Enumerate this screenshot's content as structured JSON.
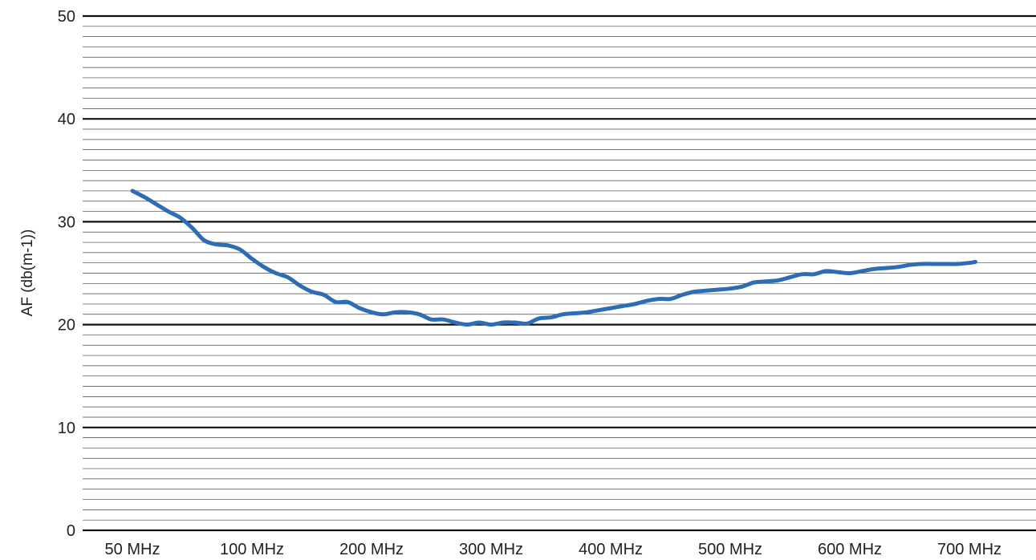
{
  "chart_data": {
    "type": "line",
    "title": "",
    "xlabel": "",
    "ylabel": "AF (db(m-1))",
    "categories": [
      "50 MHz",
      "100 MHz",
      "200 MHz",
      "300 MHz",
      "400 MHz",
      "500 MHz",
      "600 MHz",
      "700 MHz"
    ],
    "ylim": [
      0,
      50
    ],
    "yticks": [
      0,
      10,
      20,
      30,
      40,
      50
    ],
    "minor_grid_step": 1,
    "grid": true,
    "series": [
      {
        "color": "#2e6db4",
        "x": [
          0.0,
          0.1,
          0.2,
          0.3,
          0.4,
          0.5,
          0.6,
          0.7,
          0.8,
          0.9,
          1.0,
          1.1,
          1.2,
          1.3,
          1.4,
          1.5,
          1.6,
          1.7,
          1.8,
          1.9,
          2.0,
          2.1,
          2.2,
          2.3,
          2.4,
          2.5,
          2.6,
          2.7,
          2.8,
          2.9,
          3.0,
          3.1,
          3.2,
          3.3,
          3.4,
          3.5,
          3.6,
          3.7,
          3.8,
          3.9,
          4.0,
          4.1,
          4.2,
          4.3,
          4.4,
          4.5,
          4.6,
          4.7,
          4.8,
          4.9,
          5.0,
          5.1,
          5.2,
          5.3,
          5.4,
          5.5,
          5.6,
          5.7,
          5.8,
          5.9,
          6.0,
          6.1,
          6.2,
          6.3,
          6.4,
          6.5,
          6.6,
          6.7,
          6.8,
          6.9,
          7.0,
          7.05
        ],
        "y": [
          33.0,
          32.4,
          31.7,
          31.0,
          30.4,
          29.4,
          28.2,
          27.8,
          27.7,
          27.3,
          26.4,
          25.6,
          25.0,
          24.6,
          23.8,
          23.2,
          22.9,
          22.2,
          22.2,
          21.6,
          21.2,
          21.0,
          21.2,
          21.2,
          21.0,
          20.5,
          20.5,
          20.2,
          20.0,
          20.2,
          20.0,
          20.2,
          20.2,
          20.1,
          20.6,
          20.7,
          21.0,
          21.1,
          21.2,
          21.4,
          21.6,
          21.8,
          22.0,
          22.3,
          22.5,
          22.5,
          22.9,
          23.2,
          23.3,
          23.4,
          23.5,
          23.7,
          24.1,
          24.2,
          24.3,
          24.6,
          24.9,
          24.9,
          25.2,
          25.1,
          25.0,
          25.2,
          25.4,
          25.5,
          25.6,
          25.8,
          25.9,
          25.9,
          25.9,
          25.9,
          26.0,
          26.1
        ]
      }
    ]
  }
}
